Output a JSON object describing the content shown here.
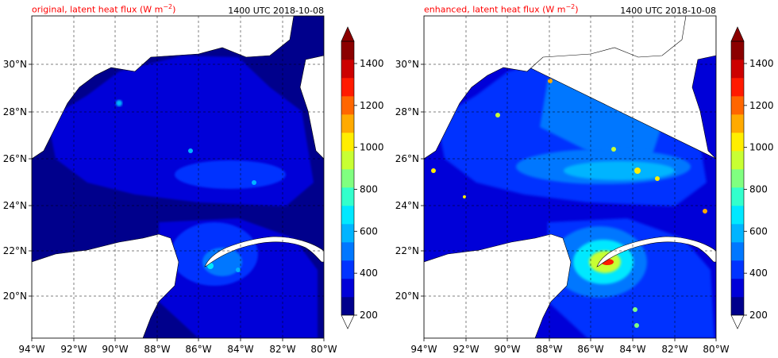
{
  "panels": [
    {
      "title": "original, latent heat flux (W m",
      "title_sup": "−2",
      "title_close": ")",
      "time": "1400 UTC 2018-10-08"
    },
    {
      "title": "enhanced, latent heat flux (W m",
      "title_sup": "−2",
      "title_close": ")",
      "time": "1400 UTC 2018-10-08"
    }
  ],
  "axes": {
    "lon_labels": [
      "94°W",
      "92°W",
      "90°W",
      "88°W",
      "86°W",
      "84°W",
      "82°W",
      "80°W"
    ],
    "lat_labels": [
      "30°N",
      "28°N",
      "26°N",
      "24°N",
      "22°N",
      "20°N"
    ]
  },
  "colorbar": {
    "ticks": [
      "1400",
      "1200",
      "1000",
      "800",
      "600",
      "400",
      "200"
    ],
    "colors": [
      "#00008c",
      "#0000d8",
      "#0033ff",
      "#0077ff",
      "#00b4ff",
      "#00e8ff",
      "#33ffcc",
      "#80ff80",
      "#c8ff33",
      "#ffee00",
      "#ffaa00",
      "#ff6600",
      "#ff1a00",
      "#cc0000",
      "#8b0000"
    ]
  },
  "colors": {
    "land": "#ffffff",
    "low_flux": "#00008c",
    "title_red": "#ff0000"
  }
}
